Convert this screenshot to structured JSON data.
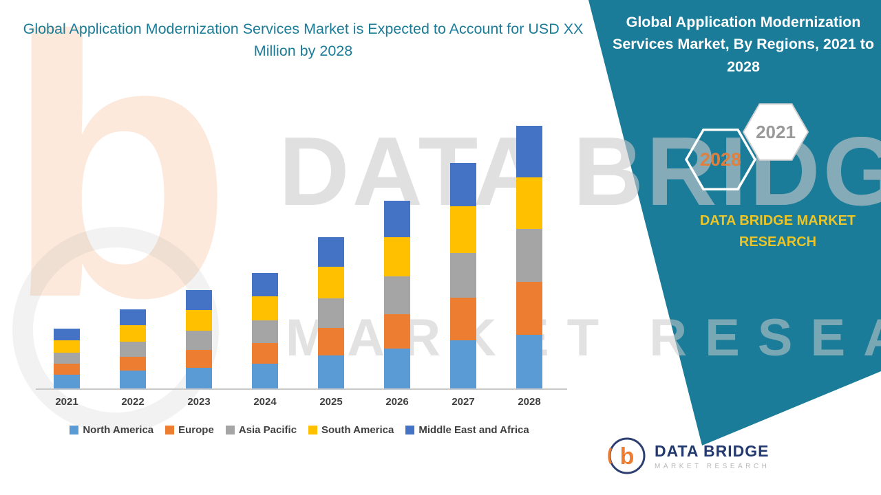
{
  "page": {
    "teal": "#1A7C99",
    "background": "#FFFFFF"
  },
  "left_title": "Global Application Modernization Services Market is Expected to Account for USD XX Million by 2028",
  "right_panel": {
    "title": "Global Application Modernization Services Market, By Regions, 2021 to 2028",
    "hexagons": [
      {
        "label": "2028",
        "text_color": "#E08040"
      },
      {
        "label": "2021",
        "text_color": "#999999"
      }
    ],
    "brand_text": "DATA BRIDGE MARKET RESEARCH"
  },
  "watermark": {
    "brand_line": "DATA BRIDGE",
    "sub_line": "MARKET RESEARCH",
    "letter": "b"
  },
  "logo": {
    "emblem_letter": "b",
    "name": "DATA BRIDGE",
    "sub": "MARKET RESEARCH"
  },
  "chart_data": {
    "type": "bar",
    "stacked": true,
    "title": "Global Application Modernization Services Market is Expected to Account for USD XX Million by 2028",
    "subtitle": "Global Application Modernization Services Market, By Regions, 2021 to 2028",
    "categories": [
      "2021",
      "2022",
      "2023",
      "2024",
      "2025",
      "2026",
      "2027",
      "2028"
    ],
    "series": [
      {
        "name": "North America",
        "color": "#5B9BD5",
        "values": [
          20,
          26,
          30,
          36,
          48,
          58,
          70,
          78
        ]
      },
      {
        "name": "Europe",
        "color": "#ED7D31",
        "values": [
          16,
          20,
          26,
          30,
          40,
          50,
          62,
          77
        ]
      },
      {
        "name": "Asia Pacific",
        "color": "#A5A5A5",
        "values": [
          16,
          22,
          28,
          33,
          43,
          55,
          65,
          77
        ]
      },
      {
        "name": "South America",
        "color": "#FFC000",
        "values": [
          18,
          24,
          30,
          35,
          46,
          57,
          68,
          75
        ]
      },
      {
        "name": "Middle East and Africa",
        "color": "#4472C4",
        "values": [
          17,
          23,
          29,
          34,
          43,
          53,
          63,
          75
        ]
      }
    ],
    "xlabel": "",
    "ylabel": "",
    "ylim": [
      0,
      385
    ],
    "y_axis_labels_visible": false,
    "value_note": "Y-axis not labeled in figure (values shown as USD XX Million); series values estimated from bar heights in relative units",
    "legend_position": "bottom",
    "grid": false
  }
}
